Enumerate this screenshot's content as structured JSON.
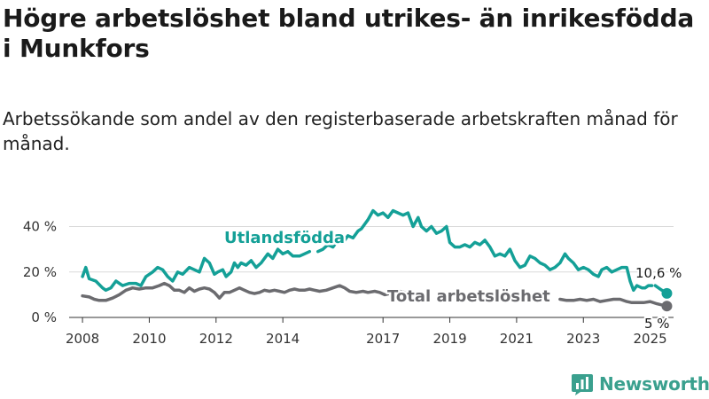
{
  "header": {
    "title": "Högre arbetslöshet bland utrikes- än inrikesfödda i Munkfors",
    "subtitle": "Arbetssökande som andel av den registerbaserade arbetskraften månad för månad."
  },
  "brand": {
    "name": "Newsworthy",
    "logo_icon": "bar-chart-icon",
    "color": "#3aa08e"
  },
  "chart_data": {
    "type": "line",
    "title": "Högre arbetslöshet bland utrikes- än inrikesfödda i Munkfors",
    "subtitle": "Arbetssökande som andel av den registerbaserade arbetskraften månad för månad.",
    "xlabel": "",
    "ylabel": "",
    "xlim": [
      2007.6,
      2025.7
    ],
    "ylim": [
      0,
      48
    ],
    "grid": true,
    "yticks": [
      {
        "value": 0,
        "label": "0 %"
      },
      {
        "value": 20,
        "label": "20 %"
      },
      {
        "value": 40,
        "label": "40 %"
      }
    ],
    "xticks": [
      {
        "value": 2008,
        "label": "2008"
      },
      {
        "value": 2010,
        "label": "2010"
      },
      {
        "value": 2012,
        "label": "2012"
      },
      {
        "value": 2014,
        "label": "2014"
      },
      {
        "value": 2017,
        "label": "2017"
      },
      {
        "value": 2019,
        "label": "2019"
      },
      {
        "value": 2021,
        "label": "2021"
      },
      {
        "value": 2023,
        "label": "2023"
      },
      {
        "value": 2025,
        "label": "2025"
      }
    ],
    "series": [
      {
        "name": "Utlandsfödda",
        "color": "#14a097",
        "end_label": "10,6 %",
        "segments": [
          [
            [
              2008.0,
              18
            ],
            [
              2008.1,
              22
            ],
            [
              2008.2,
              17
            ],
            [
              2008.4,
              16
            ],
            [
              2008.6,
              13
            ],
            [
              2008.7,
              12
            ],
            [
              2008.85,
              13
            ],
            [
              2009.0,
              16
            ],
            [
              2009.2,
              14
            ],
            [
              2009.4,
              15
            ],
            [
              2009.6,
              15
            ],
            [
              2009.75,
              14
            ],
            [
              2009.9,
              18
            ],
            [
              2010.1,
              20
            ],
            [
              2010.25,
              22
            ],
            [
              2010.4,
              21
            ],
            [
              2010.55,
              18
            ],
            [
              2010.7,
              16
            ],
            [
              2010.85,
              20
            ],
            [
              2011.0,
              19
            ],
            [
              2011.2,
              22
            ],
            [
              2011.35,
              21
            ],
            [
              2011.5,
              20
            ],
            [
              2011.65,
              26
            ],
            [
              2011.8,
              24
            ],
            [
              2011.95,
              19
            ],
            [
              2012.05,
              20
            ],
            [
              2012.2,
              21
            ],
            [
              2012.3,
              18
            ],
            [
              2012.45,
              20
            ],
            [
              2012.55,
              24
            ],
            [
              2012.65,
              22
            ],
            [
              2012.75,
              24
            ],
            [
              2012.9,
              23
            ],
            [
              2013.05,
              25
            ],
            [
              2013.2,
              22
            ],
            [
              2013.35,
              24
            ],
            [
              2013.55,
              28
            ],
            [
              2013.7,
              26
            ],
            [
              2013.85,
              30
            ],
            [
              2014.0,
              28
            ],
            [
              2014.15,
              29
            ],
            [
              2014.3,
              27
            ],
            [
              2014.5,
              27
            ],
            [
              2014.65,
              28
            ],
            [
              2014.8,
              29
            ]
          ],
          [
            [
              2015.05,
              29
            ],
            [
              2015.2,
              30
            ],
            [
              2015.35,
              32
            ],
            [
              2015.5,
              31
            ],
            [
              2015.65,
              34
            ],
            [
              2015.8,
              33
            ],
            [
              2015.95,
              36
            ],
            [
              2016.1,
              35
            ],
            [
              2016.25,
              38
            ],
            [
              2016.35,
              39
            ],
            [
              2016.45,
              41
            ],
            [
              2016.55,
              43
            ],
            [
              2016.7,
              47
            ],
            [
              2016.85,
              45
            ],
            [
              2017.0,
              46
            ],
            [
              2017.15,
              44
            ],
            [
              2017.3,
              47
            ],
            [
              2017.45,
              46
            ],
            [
              2017.6,
              45
            ],
            [
              2017.75,
              46
            ],
            [
              2017.9,
              40
            ],
            [
              2018.05,
              44
            ],
            [
              2018.15,
              40
            ],
            [
              2018.3,
              38
            ],
            [
              2018.45,
              40
            ],
            [
              2018.6,
              37
            ],
            [
              2018.75,
              38
            ],
            [
              2018.9,
              40
            ],
            [
              2019.0,
              33
            ],
            [
              2019.15,
              31
            ],
            [
              2019.3,
              31
            ],
            [
              2019.45,
              32
            ],
            [
              2019.6,
              31
            ],
            [
              2019.75,
              33
            ],
            [
              2019.9,
              32
            ],
            [
              2020.05,
              34
            ],
            [
              2020.2,
              31
            ],
            [
              2020.35,
              27
            ],
            [
              2020.5,
              28
            ],
            [
              2020.65,
              27
            ],
            [
              2020.8,
              30
            ],
            [
              2020.95,
              25
            ],
            [
              2021.1,
              22
            ],
            [
              2021.25,
              23
            ],
            [
              2021.4,
              27
            ],
            [
              2021.55,
              26
            ],
            [
              2021.7,
              24
            ],
            [
              2021.85,
              23
            ],
            [
              2022.0,
              21
            ],
            [
              2022.15,
              22
            ],
            [
              2022.3,
              24
            ],
            [
              2022.45,
              28
            ],
            [
              2022.55,
              26
            ],
            [
              2022.7,
              24
            ],
            [
              2022.85,
              21
            ],
            [
              2023.0,
              22
            ],
            [
              2023.15,
              21
            ],
            [
              2023.3,
              19
            ],
            [
              2023.45,
              18
            ],
            [
              2023.55,
              21
            ],
            [
              2023.7,
              22
            ],
            [
              2023.85,
              20
            ],
            [
              2024.0,
              21
            ],
            [
              2024.15,
              22
            ],
            [
              2024.3,
              22
            ],
            [
              2024.4,
              16
            ],
            [
              2024.5,
              12
            ],
            [
              2024.6,
              14
            ],
            [
              2024.75,
              13
            ],
            [
              2024.85,
              13
            ],
            [
              2024.95,
              14
            ],
            [
              2025.05,
              14
            ]
          ],
          [
            [
              2025.15,
              14
            ],
            [
              2025.25,
              13
            ],
            [
              2025.35,
              12
            ],
            [
              2025.5,
              10.6
            ]
          ]
        ]
      },
      {
        "name": "Total arbetslöshet",
        "color": "#6b6b6f",
        "end_label": "5 %",
        "segments": [
          [
            [
              2008.0,
              9.5
            ],
            [
              2008.2,
              9
            ],
            [
              2008.35,
              8
            ],
            [
              2008.5,
              7.5
            ],
            [
              2008.7,
              7.5
            ],
            [
              2008.9,
              8.5
            ],
            [
              2009.1,
              10
            ],
            [
              2009.3,
              12
            ],
            [
              2009.5,
              13
            ],
            [
              2009.7,
              12.5
            ],
            [
              2009.9,
              13
            ],
            [
              2010.1,
              13
            ],
            [
              2010.3,
              14
            ],
            [
              2010.45,
              15
            ],
            [
              2010.6,
              14
            ],
            [
              2010.75,
              12
            ],
            [
              2010.9,
              12
            ],
            [
              2011.05,
              11
            ],
            [
              2011.2,
              13
            ],
            [
              2011.35,
              11.5
            ],
            [
              2011.5,
              12.5
            ],
            [
              2011.65,
              13
            ],
            [
              2011.8,
              12.5
            ],
            [
              2011.95,
              11
            ],
            [
              2012.1,
              8.5
            ],
            [
              2012.25,
              11
            ],
            [
              2012.4,
              11
            ],
            [
              2012.55,
              12
            ],
            [
              2012.7,
              13
            ],
            [
              2012.85,
              12
            ],
            [
              2013.0,
              11
            ],
            [
              2013.15,
              10.5
            ],
            [
              2013.3,
              11
            ],
            [
              2013.45,
              12
            ],
            [
              2013.6,
              11.5
            ],
            [
              2013.75,
              12
            ],
            [
              2013.9,
              11.5
            ],
            [
              2014.05,
              11
            ],
            [
              2014.2,
              12
            ],
            [
              2014.35,
              12.5
            ],
            [
              2014.5,
              12
            ],
            [
              2014.65,
              12
            ],
            [
              2014.8,
              12.5
            ],
            [
              2014.95,
              12
            ],
            [
              2015.1,
              11.5
            ],
            [
              2015.3,
              12
            ],
            [
              2015.5,
              13
            ],
            [
              2015.7,
              14
            ],
            [
              2015.85,
              13
            ],
            [
              2016.0,
              11.5
            ],
            [
              2016.2,
              11
            ],
            [
              2016.4,
              11.5
            ],
            [
              2016.55,
              11
            ],
            [
              2016.75,
              11.5
            ],
            [
              2016.9,
              11
            ],
            [
              2017.05,
              10
            ],
            [
              2017.2,
              10.5
            ],
            [
              2017.35,
              11
            ],
            [
              2017.5,
              11.5
            ],
            [
              2017.65,
              11
            ]
          ],
          [
            [
              2022.3,
              8
            ],
            [
              2022.5,
              7.5
            ],
            [
              2022.7,
              7.5
            ],
            [
              2022.9,
              8
            ],
            [
              2023.1,
              7.5
            ],
            [
              2023.3,
              8
            ],
            [
              2023.5,
              7
            ],
            [
              2023.7,
              7.5
            ],
            [
              2023.9,
              8
            ],
            [
              2024.1,
              8
            ],
            [
              2024.3,
              7
            ],
            [
              2024.45,
              6.5
            ],
            [
              2024.6,
              6.5
            ],
            [
              2024.8,
              6.5
            ],
            [
              2025.0,
              7
            ],
            [
              2025.2,
              6
            ],
            [
              2025.35,
              5.5
            ],
            [
              2025.5,
              5
            ]
          ]
        ]
      }
    ]
  }
}
